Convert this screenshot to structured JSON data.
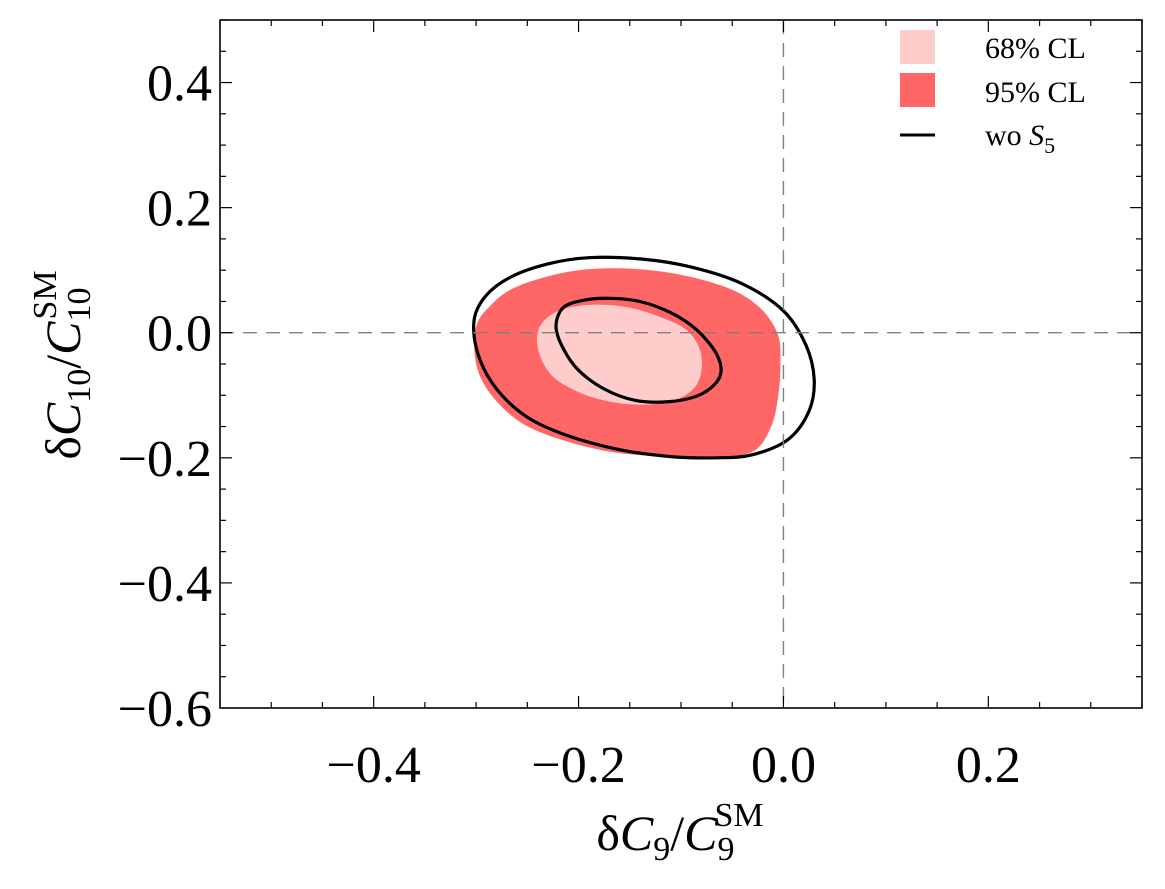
{
  "chart_data": {
    "type": "contour",
    "title": "",
    "xlabel": {
      "delta": "δ",
      "symbol": "C",
      "sub": "9",
      "slash": "/",
      "symbol2": "C",
      "sub2": "9",
      "sup2": "SM"
    },
    "ylabel": {
      "delta": "δ",
      "symbol": "C",
      "sub": "10",
      "slash": "/",
      "symbol2": "C",
      "sub2": "10",
      "sup2": "SM"
    },
    "xlim": [
      -0.55,
      0.35
    ],
    "ylim": [
      -0.6,
      0.5
    ],
    "x_ticks": [
      {
        "value": -0.4,
        "label": "−0.4"
      },
      {
        "value": -0.2,
        "label": "−0.2"
      },
      {
        "value": 0.0,
        "label": "0.0"
      },
      {
        "value": 0.2,
        "label": "0.2"
      }
    ],
    "y_ticks": [
      {
        "value": 0.4,
        "label": "0.4"
      },
      {
        "value": 0.2,
        "label": "0.2"
      },
      {
        "value": 0.0,
        "label": "0.0"
      },
      {
        "value": -0.2,
        "label": "−0.2"
      },
      {
        "value": -0.4,
        "label": "−0.4"
      },
      {
        "value": -0.6,
        "label": "−0.6"
      }
    ],
    "x_minor_step": 0.05,
    "y_minor_step": 0.05,
    "reference_lines": {
      "x": 0.0,
      "y": 0.0
    },
    "regions": [
      {
        "name": "95% CL",
        "color": "#ff6666",
        "points": [
          [
            -0.3,
            0.01
          ],
          [
            -0.285,
            0.045
          ],
          [
            -0.265,
            0.07
          ],
          [
            -0.235,
            0.088
          ],
          [
            -0.2,
            0.1
          ],
          [
            -0.16,
            0.103
          ],
          [
            -0.12,
            0.098
          ],
          [
            -0.08,
            0.085
          ],
          [
            -0.045,
            0.065
          ],
          [
            -0.02,
            0.035
          ],
          [
            -0.005,
            -0.005
          ],
          [
            -0.003,
            -0.05
          ],
          [
            -0.005,
            -0.1
          ],
          [
            -0.012,
            -0.15
          ],
          [
            -0.03,
            -0.19
          ],
          [
            -0.07,
            -0.2
          ],
          [
            -0.12,
            -0.198
          ],
          [
            -0.17,
            -0.19
          ],
          [
            -0.215,
            -0.172
          ],
          [
            -0.255,
            -0.145
          ],
          [
            -0.285,
            -0.1
          ],
          [
            -0.3,
            -0.05
          ]
        ]
      },
      {
        "name": "68% CL",
        "color": "#ffcccc",
        "points": [
          [
            -0.24,
            0.0
          ],
          [
            -0.23,
            0.025
          ],
          [
            -0.21,
            0.04
          ],
          [
            -0.18,
            0.045
          ],
          [
            -0.15,
            0.04
          ],
          [
            -0.12,
            0.025
          ],
          [
            -0.095,
            0.005
          ],
          [
            -0.082,
            -0.025
          ],
          [
            -0.08,
            -0.06
          ],
          [
            -0.088,
            -0.09
          ],
          [
            -0.11,
            -0.11
          ],
          [
            -0.14,
            -0.115
          ],
          [
            -0.17,
            -0.11
          ],
          [
            -0.2,
            -0.095
          ],
          [
            -0.225,
            -0.07
          ],
          [
            -0.238,
            -0.035
          ]
        ]
      }
    ],
    "contours": [
      {
        "name": "wo S5 outer",
        "color": "#000000",
        "points": [
          [
            -0.302,
            0.02
          ],
          [
            -0.29,
            0.06
          ],
          [
            -0.265,
            0.09
          ],
          [
            -0.23,
            0.11
          ],
          [
            -0.19,
            0.12
          ],
          [
            -0.14,
            0.118
          ],
          [
            -0.09,
            0.105
          ],
          [
            -0.04,
            0.078
          ],
          [
            0.0,
            0.035
          ],
          [
            0.022,
            -0.02
          ],
          [
            0.03,
            -0.075
          ],
          [
            0.025,
            -0.125
          ],
          [
            0.005,
            -0.17
          ],
          [
            -0.03,
            -0.195
          ],
          [
            -0.065,
            -0.2
          ],
          [
            -0.11,
            -0.198
          ],
          [
            -0.16,
            -0.187
          ],
          [
            -0.21,
            -0.165
          ],
          [
            -0.25,
            -0.135
          ],
          [
            -0.28,
            -0.09
          ],
          [
            -0.298,
            -0.035
          ]
        ]
      },
      {
        "name": "wo S5 inner",
        "color": "#000000",
        "points": [
          [
            -0.222,
            0.01
          ],
          [
            -0.215,
            0.04
          ],
          [
            -0.195,
            0.052
          ],
          [
            -0.17,
            0.055
          ],
          [
            -0.14,
            0.05
          ],
          [
            -0.11,
            0.032
          ],
          [
            -0.085,
            0.005
          ],
          [
            -0.065,
            -0.035
          ],
          [
            -0.062,
            -0.07
          ],
          [
            -0.08,
            -0.098
          ],
          [
            -0.11,
            -0.11
          ],
          [
            -0.145,
            -0.108
          ],
          [
            -0.175,
            -0.09
          ],
          [
            -0.2,
            -0.06
          ],
          [
            -0.215,
            -0.025
          ]
        ]
      }
    ],
    "legend": {
      "placement": "top-right",
      "entries": [
        {
          "label": "68% CL",
          "kind": "patch",
          "color": "#ffcccc"
        },
        {
          "label": "95% CL",
          "kind": "patch",
          "color": "#ff6666"
        },
        {
          "label_prefix": "wo ",
          "label_symbol": "S",
          "label_sub": "5",
          "kind": "line",
          "color": "#000000"
        }
      ]
    }
  }
}
